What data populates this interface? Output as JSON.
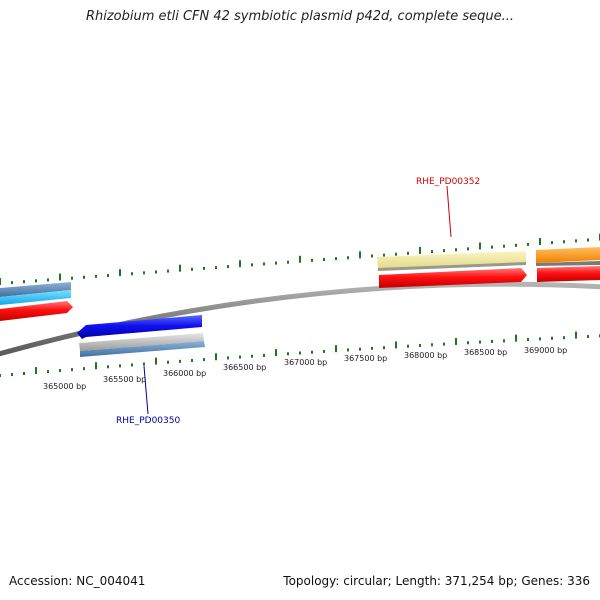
{
  "title": "Rhizobium etli CFN 42 symbiotic plasmid p42d, complete seque...",
  "footer": {
    "accession": "Accession: NC_004041",
    "summary": "Topology: circular; Length: 371,254 bp; Genes: 336"
  },
  "ruler": {
    "tick_labels": [
      "365000 bp",
      "365500 bp",
      "366000 bp",
      "366500 bp",
      "367000 bp",
      "367500 bp",
      "368000 bp",
      "368500 bp",
      "369000 bp"
    ]
  },
  "gene_labels": {
    "upper": "RHE_PD00352",
    "lower": "RHE_PD00350"
  },
  "colors": {
    "upper_label": "#cc0000",
    "lower_label": "#000099",
    "tick": "#1a7a1a",
    "backbone": "#808080"
  }
}
